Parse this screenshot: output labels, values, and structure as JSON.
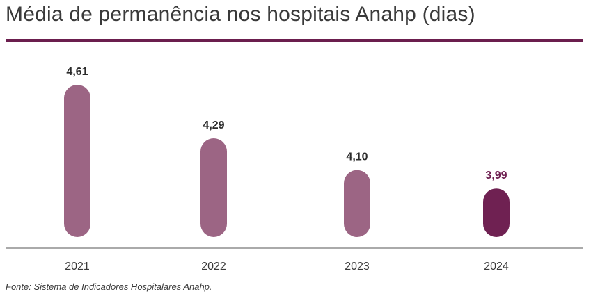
{
  "title": "Média de permanência nos hospitais Anahp (dias)",
  "source": "Fonte: Sistema de Indicadores Hospitalares Anahp.",
  "colors": {
    "accent": "#6b1e4e",
    "bar": "#9c6584",
    "bar_highlight": "#6f2152",
    "value_text": "#2b2b2b",
    "value_highlight": "#6f2152",
    "axis": "#555555"
  },
  "chart_data": {
    "type": "bar",
    "categories": [
      "2021",
      "2022",
      "2023",
      "2024"
    ],
    "values": [
      4.61,
      4.29,
      4.1,
      3.99
    ],
    "value_labels": [
      "4,61",
      "4,29",
      "4,10",
      "3,99"
    ],
    "highlight_index": 3,
    "title": "Média de permanência nos hospitais Anahp (dias)",
    "xlabel": "",
    "ylabel": "",
    "grid": false,
    "legend": "none"
  }
}
